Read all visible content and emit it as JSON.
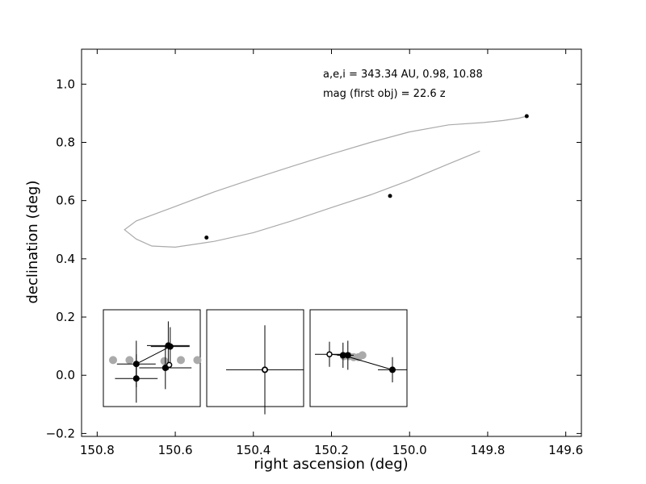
{
  "chart_data": {
    "type": "scatter",
    "title": "",
    "xlabel": "right ascension (deg)",
    "ylabel": "declination (deg)",
    "xlim": [
      150.84,
      149.56
    ],
    "ylim": [
      -0.21,
      1.12
    ],
    "x_inverted": true,
    "grid": false,
    "x_ticks": [
      150.8,
      150.6,
      150.4,
      150.2,
      150.0,
      149.8,
      149.6
    ],
    "x_tick_labels": [
      "150.8",
      "150.6",
      "150.4",
      "150.2",
      "150.0",
      "149.8",
      "149.6"
    ],
    "y_ticks": [
      -0.2,
      0.0,
      0.2,
      0.4,
      0.6,
      0.8,
      1.0
    ],
    "y_tick_labels": [
      "−0.2",
      "0.0",
      "0.2",
      "0.4",
      "0.6",
      "0.8",
      "1.0"
    ],
    "annotations": [
      "a,e,i = 343.34 AU, 0.98, 10.88",
      "mag (first obj) =  22.6 z"
    ],
    "observations": {
      "x": [
        150.52,
        150.05,
        149.7
      ],
      "y": [
        0.473,
        0.616,
        0.89
      ],
      "color": "#000000"
    },
    "orbit_track": {
      "color": "#aaaaaa",
      "x": [
        149.82,
        149.9,
        150.0,
        150.1,
        150.2,
        150.3,
        150.4,
        150.5,
        150.6,
        150.66,
        150.7,
        150.73,
        150.7,
        150.6,
        150.5,
        150.4,
        150.3,
        150.2,
        150.1,
        150.0,
        149.9,
        149.81,
        149.76,
        149.72,
        149.7
      ],
      "y": [
        0.77,
        0.726,
        0.67,
        0.62,
        0.576,
        0.531,
        0.49,
        0.46,
        0.44,
        0.444,
        0.468,
        0.5,
        0.53,
        0.58,
        0.63,
        0.675,
        0.718,
        0.76,
        0.8,
        0.836,
        0.86,
        0.868,
        0.875,
        0.883,
        0.89
      ]
    },
    "insets": [
      {
        "points_gray": [
          [
            0.1,
            0.52
          ],
          [
            0.27,
            0.52
          ],
          [
            0.63,
            0.53
          ],
          [
            0.8,
            0.52
          ],
          [
            0.97,
            0.52
          ]
        ],
        "points_black": [
          [
            0.69,
            0.38
          ],
          [
            0.34,
            0.56
          ],
          [
            0.34,
            0.71
          ],
          [
            0.67,
            0.37
          ],
          [
            0.64,
            0.6
          ]
        ],
        "points_open": [
          [
            0.68,
            0.57
          ]
        ],
        "errorbars": [
          {
            "x": 0.69,
            "y": 0.38,
            "xerr": 0.2,
            "yerr": 0.2
          },
          {
            "x": 0.34,
            "y": 0.56,
            "xerr": 0.2,
            "yerr": 0.24
          },
          {
            "x": 0.34,
            "y": 0.71,
            "xerr": 0.22,
            "yerr": 0.25
          },
          {
            "x": 0.67,
            "y": 0.37,
            "xerr": 0.22,
            "yerr": 0.25
          },
          {
            "x": 0.64,
            "y": 0.6,
            "xerr": 0.27,
            "yerr": 0.22
          }
        ],
        "links": [
          [
            0.34,
            0.71,
            0.34,
            0.56
          ],
          [
            0.34,
            0.56,
            0.69,
            0.38
          ]
        ]
      },
      {
        "points_gray": [],
        "points_black": [
          [
            0.6,
            0.62
          ]
        ],
        "points_open": [
          [
            0.6,
            0.62
          ]
        ],
        "errorbars": [
          {
            "x": 0.6,
            "y": 0.62,
            "xerr": 0.4,
            "yerr": 0.46
          }
        ],
        "links": []
      },
      {
        "points_gray": [
          [
            0.35,
            0.48
          ],
          [
            0.4,
            0.48
          ],
          [
            0.45,
            0.49
          ],
          [
            0.5,
            0.49
          ],
          [
            0.54,
            0.47
          ]
        ],
        "points_black": [
          [
            0.34,
            0.47
          ],
          [
            0.39,
            0.47
          ],
          [
            0.85,
            0.62
          ]
        ],
        "points_open": [
          [
            0.2,
            0.46
          ]
        ],
        "errorbars": [
          {
            "x": 0.2,
            "y": 0.46,
            "xerr": 0.15,
            "yerr": 0.13
          },
          {
            "x": 0.34,
            "y": 0.47,
            "xerr": 0.06,
            "yerr": 0.13
          },
          {
            "x": 0.39,
            "y": 0.47,
            "xerr": 0.06,
            "yerr": 0.15
          },
          {
            "x": 0.85,
            "y": 0.62,
            "xerr": 0.15,
            "yerr": 0.13
          }
        ],
        "links": [
          [
            0.2,
            0.46,
            0.34,
            0.47
          ],
          [
            0.34,
            0.47,
            0.85,
            0.62
          ]
        ]
      }
    ]
  }
}
